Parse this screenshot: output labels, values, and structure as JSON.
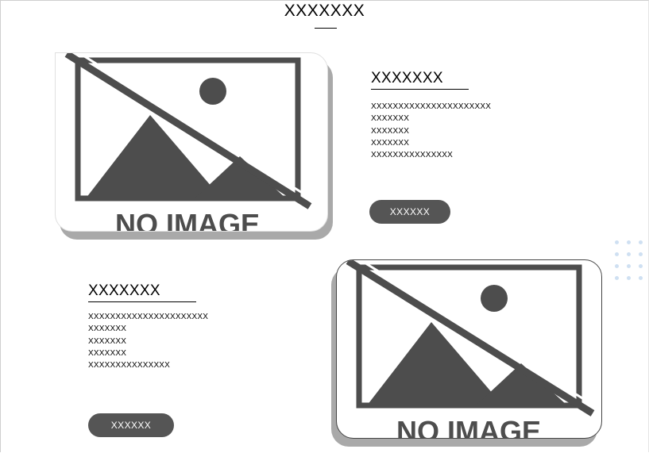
{
  "header": {
    "title": "XXXXXXX"
  },
  "features": [
    {
      "heading": "XXXXXXX",
      "lines": [
        "XXXXXXXXXXXXXXXXXXXXXX",
        "XXXXXXX",
        "XXXXXXX",
        "XXXXXXX",
        "XXXXXXXXXXXXXXX"
      ],
      "button_label": "XXXXXX",
      "image_label": "NO IMAGE"
    },
    {
      "heading": "XXXXXXX",
      "lines": [
        "XXXXXXXXXXXXXXXXXXXXXX",
        "XXXXXXX",
        "XXXXXXX",
        "XXXXXXX",
        "XXXXXXXXXXXXXXX"
      ],
      "button_label": "XXXXXX",
      "image_label": "NO IMAGE"
    }
  ],
  "colors": {
    "placeholder_gray": "#4d4d4d",
    "button_bg": "#555555",
    "shadow": "#a9a9a9",
    "dot_accent": "#cfe0f2"
  }
}
